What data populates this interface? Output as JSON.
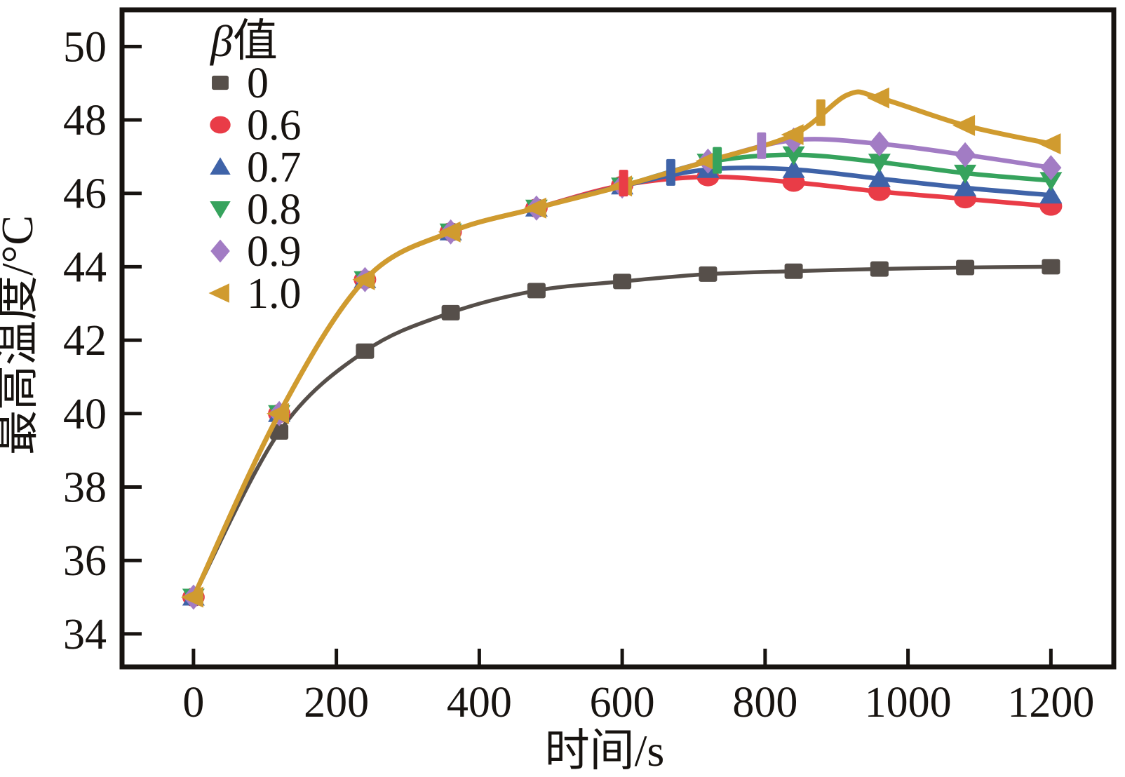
{
  "figure": {
    "background": "#ffffff",
    "legend": {
      "title_symbol": "β",
      "title_text": "值",
      "items": [
        {
          "label": "0",
          "marker": "square",
          "color": "#564f4a"
        },
        {
          "label": "0.6",
          "marker": "circle",
          "color": "#e93c47"
        },
        {
          "label": "0.7",
          "marker": "triangle-up",
          "color": "#3f63a8"
        },
        {
          "label": "0.8",
          "marker": "triangle-down",
          "color": "#36a35d"
        },
        {
          "label": "0.9",
          "marker": "diamond",
          "color": "#a27cc4"
        },
        {
          "label": "1.0",
          "marker": "triangle-left",
          "color": "#d09b2f"
        }
      ]
    }
  },
  "chart_data": {
    "type": "line",
    "title": "",
    "xlabel": "时间/s",
    "ylabel": "最高温度/°C",
    "legend_title": "β值",
    "legend_position": "upper-left-inside",
    "grid": false,
    "xlim": [
      -100,
      1288
    ],
    "ylim": [
      33.1,
      51.0
    ],
    "xticks": [
      "0",
      "200",
      "400",
      "600",
      "800",
      "1000",
      "1200"
    ],
    "xtick_values": [
      0,
      200,
      400,
      600,
      800,
      1000,
      1200
    ],
    "yticks": [
      "34",
      "36",
      "38",
      "40",
      "42",
      "44",
      "46",
      "48",
      "50"
    ],
    "ytick_values": [
      34,
      36,
      38,
      40,
      42,
      44,
      46,
      48,
      50
    ],
    "axis_color": "#171310",
    "series": [
      {
        "name": "0",
        "color": "#564f4a",
        "marker": "square",
        "line_width": 5.5,
        "x": [
          0,
          120,
          240,
          360,
          480,
          600,
          720,
          840,
          960,
          1080,
          1200
        ],
        "y": [
          35.0,
          39.5,
          41.7,
          42.75,
          43.35,
          43.6,
          43.8,
          43.88,
          43.94,
          43.98,
          44.0
        ]
      },
      {
        "name": "0.6",
        "color": "#e93c47",
        "marker": "circle",
        "line_width": 6.5,
        "x": [
          0,
          120,
          240,
          360,
          480,
          600,
          720,
          840,
          960,
          1080,
          1200
        ],
        "y": [
          35.0,
          40.0,
          43.65,
          44.95,
          45.6,
          46.22,
          46.45,
          46.3,
          46.05,
          45.85,
          45.65
        ]
      },
      {
        "name": "0.7",
        "color": "#3f63a8",
        "marker": "triangle-up",
        "line_width": 6.5,
        "x": [
          0,
          120,
          240,
          360,
          480,
          600,
          720,
          840,
          960,
          1080,
          1200
        ],
        "y": [
          35.0,
          40.0,
          43.65,
          44.95,
          45.6,
          46.2,
          46.65,
          46.65,
          46.4,
          46.15,
          45.95
        ]
      },
      {
        "name": "0.8",
        "color": "#36a35d",
        "marker": "triangle-down",
        "line_width": 6.5,
        "x": [
          0,
          120,
          240,
          360,
          480,
          600,
          720,
          840,
          960,
          1080,
          1200
        ],
        "y": [
          35.0,
          40.0,
          43.65,
          44.95,
          45.6,
          46.2,
          46.85,
          47.05,
          46.85,
          46.55,
          46.35
        ]
      },
      {
        "name": "0.9",
        "color": "#a27cc4",
        "marker": "diamond",
        "line_width": 6.5,
        "x": [
          0,
          120,
          240,
          360,
          480,
          600,
          720,
          840,
          960,
          1080,
          1200
        ],
        "y": [
          35.0,
          40.0,
          43.65,
          44.95,
          45.6,
          46.2,
          46.88,
          47.45,
          47.35,
          47.05,
          46.7
        ]
      },
      {
        "name": "1.0",
        "color": "#d09b2f",
        "marker": "triangle-left",
        "line_width": 7,
        "x": [
          0,
          120,
          240,
          360,
          480,
          600,
          720,
          840,
          915,
          960,
          1080,
          1200
        ],
        "y": [
          35.0,
          40.0,
          43.65,
          44.95,
          45.6,
          46.2,
          46.88,
          47.6,
          48.68,
          48.6,
          47.85,
          47.35
        ],
        "anchor_only_idx": [
          8
        ]
      }
    ],
    "branch_markers": [
      {
        "series": "0.6",
        "time": 602,
        "temp": 46.28,
        "color": "#e93c47"
      },
      {
        "series": "0.7",
        "time": 668,
        "temp": 46.57,
        "color": "#3f63a8"
      },
      {
        "series": "0.8",
        "time": 733,
        "temp": 46.9,
        "color": "#36a35d"
      },
      {
        "series": "0.9",
        "time": 795,
        "temp": 47.3,
        "color": "#a27cc4"
      },
      {
        "series": "1.0",
        "time": 878,
        "temp": 48.2,
        "color": "#d09b2f"
      }
    ]
  }
}
